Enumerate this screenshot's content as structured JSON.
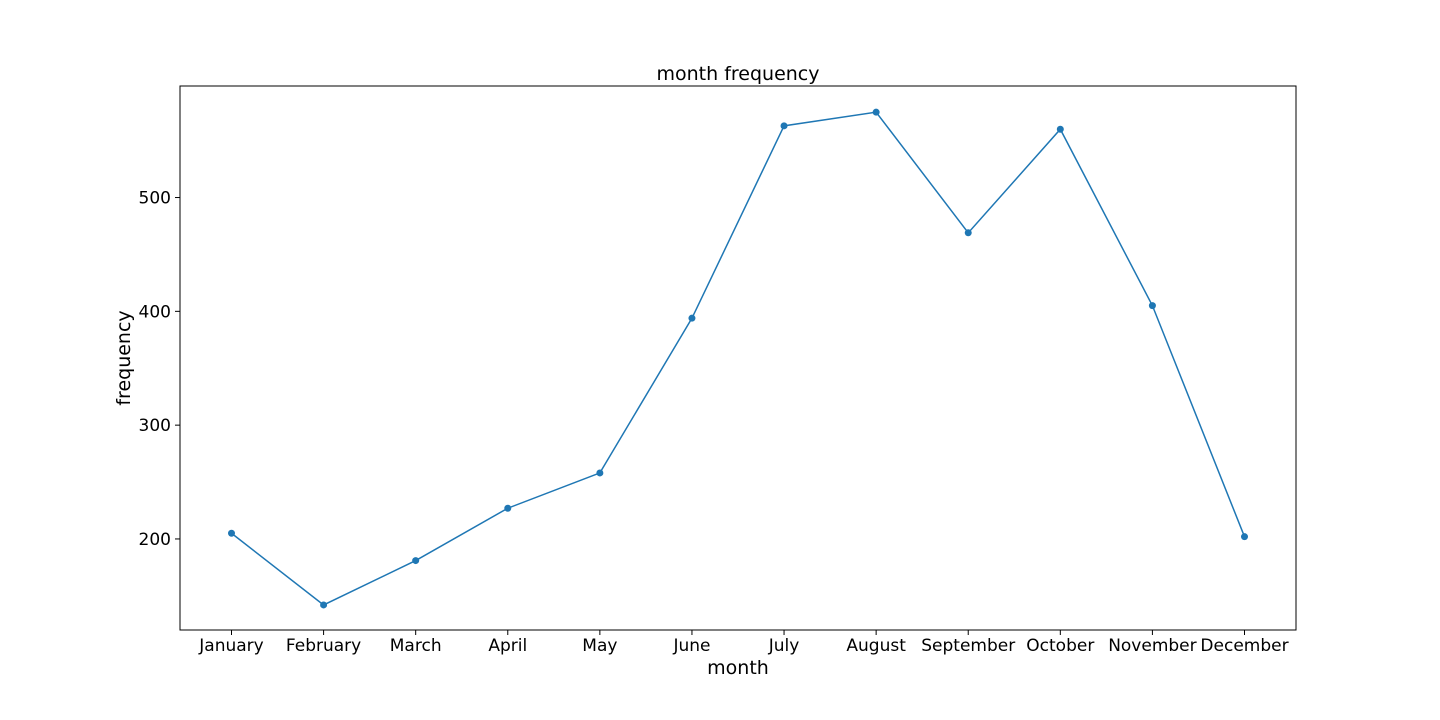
{
  "chart_data": {
    "type": "line",
    "title": "month frequency",
    "xlabel": "month",
    "ylabel": "frequency",
    "categories": [
      "January",
      "February",
      "March",
      "April",
      "May",
      "June",
      "July",
      "August",
      "September",
      "October",
      "November",
      "December"
    ],
    "values": [
      205,
      142,
      181,
      227,
      258,
      394,
      563,
      575,
      469,
      560,
      405,
      202
    ],
    "ylim": [
      120,
      598
    ],
    "yticks": [
      200,
      300,
      400,
      500
    ],
    "grid": false,
    "markers": true,
    "line_color": "#1f77b4"
  }
}
